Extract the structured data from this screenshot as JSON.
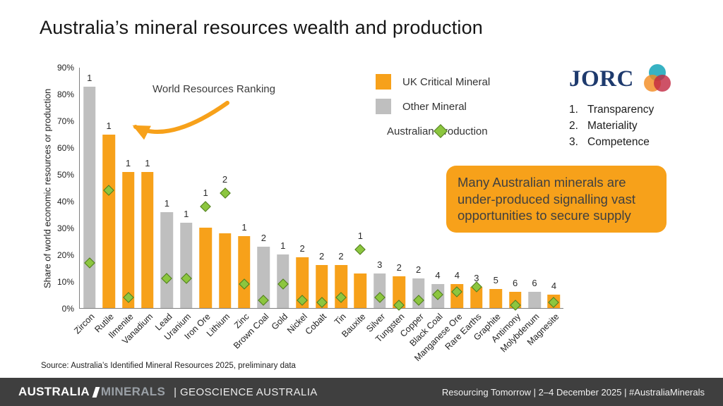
{
  "title": "Australia’s mineral resources wealth and production",
  "chart_data": {
    "type": "bar",
    "ylabel": "Share of world economic resources or production",
    "ylim": [
      0,
      90
    ],
    "ytick_step": 10,
    "grid": false,
    "annotation": "World Resources Ranking",
    "colors": {
      "uk": "#F7A11A",
      "other": "#BFBFBF",
      "production_fill": "#8CC63F",
      "production_border": "#4E7A1E"
    },
    "legend": [
      {
        "label": "UK Critical Mineral",
        "shape": "square",
        "color": "#F7A11A"
      },
      {
        "label": "Other Mineral",
        "shape": "square",
        "color": "#BFBFBF"
      },
      {
        "label": "Australian Production",
        "shape": "diamond",
        "color": "#8CC63F"
      }
    ],
    "bars": [
      {
        "name": "Zircon",
        "value": 83,
        "type": "other",
        "rank": 1,
        "production": 17
      },
      {
        "name": "Rutile",
        "value": 65,
        "type": "uk",
        "rank": 1,
        "production": 44
      },
      {
        "name": "Ilmenite",
        "value": 51,
        "type": "uk",
        "rank": 1,
        "production": 4
      },
      {
        "name": "Vanadium",
        "value": 51,
        "type": "uk",
        "rank": 1,
        "production": null
      },
      {
        "name": "Lead",
        "value": 36,
        "type": "other",
        "rank": 1,
        "production": 11
      },
      {
        "name": "Uranium",
        "value": 32,
        "type": "other",
        "rank": 1,
        "production": 11
      },
      {
        "name": "Iron Ore",
        "value": 30,
        "type": "uk",
        "rank": 1,
        "production": 38
      },
      {
        "name": "Lithium",
        "value": 28,
        "type": "uk",
        "rank": 2,
        "production": 43
      },
      {
        "name": "Zinc",
        "value": 27,
        "type": "uk",
        "rank": 1,
        "production": 9
      },
      {
        "name": "Brown Coal",
        "value": 23,
        "type": "other",
        "rank": 2,
        "production": 3
      },
      {
        "name": "Gold",
        "value": 20,
        "type": "other",
        "rank": 1,
        "production": 9
      },
      {
        "name": "Nickel",
        "value": 19,
        "type": "uk",
        "rank": 2,
        "production": 3
      },
      {
        "name": "Cobalt",
        "value": 16,
        "type": "uk",
        "rank": 2,
        "production": 2
      },
      {
        "name": "Tin",
        "value": 16,
        "type": "uk",
        "rank": 2,
        "production": 4
      },
      {
        "name": "Bauxite",
        "value": 13,
        "type": "uk",
        "rank": 1,
        "production": 22
      },
      {
        "name": "Silver",
        "value": 13,
        "type": "other",
        "rank": 3,
        "production": 4
      },
      {
        "name": "Tungsten",
        "value": 12,
        "type": "uk",
        "rank": 2,
        "production": 1
      },
      {
        "name": "Copper",
        "value": 11,
        "type": "other",
        "rank": 2,
        "production": 3
      },
      {
        "name": "Black Coal",
        "value": 9,
        "type": "other",
        "rank": 4,
        "production": 5
      },
      {
        "name": "Manganese Ore",
        "value": 9,
        "type": "uk",
        "rank": 4,
        "production": 6
      },
      {
        "name": "Rare Earths",
        "value": 8,
        "type": "uk",
        "rank": 3,
        "production": 8
      },
      {
        "name": "Graphite",
        "value": 7,
        "type": "uk",
        "rank": 5,
        "production": null
      },
      {
        "name": "Antimony",
        "value": 6,
        "type": "uk",
        "rank": 6,
        "production": 1
      },
      {
        "name": "Molybdenum",
        "value": 6,
        "type": "other",
        "rank": 6,
        "production": null
      },
      {
        "name": "Magnesite",
        "value": 5,
        "type": "uk",
        "rank": 4,
        "production": 2
      }
    ]
  },
  "callout": {
    "text": "Many Australian minerals are under-produced signalling vast opportunities to secure supply"
  },
  "jorc": {
    "wordmark": "JORC",
    "principles": [
      {
        "num": "1.",
        "label": "Transparency"
      },
      {
        "num": "2.",
        "label": "Materiality"
      },
      {
        "num": "3.",
        "label": "Competence"
      }
    ]
  },
  "source": "Source: Australia’s Identified Mineral Resources 2025, preliminary data",
  "footer": {
    "brand_left": "AUSTRALIA",
    "brand_right": "MINERALS",
    "brand_suffix": "| GEOSCIENCE AUSTRALIA",
    "event": "Resourcing Tomorrow | 2–4 December 2025 | #AustraliaMinerals"
  }
}
